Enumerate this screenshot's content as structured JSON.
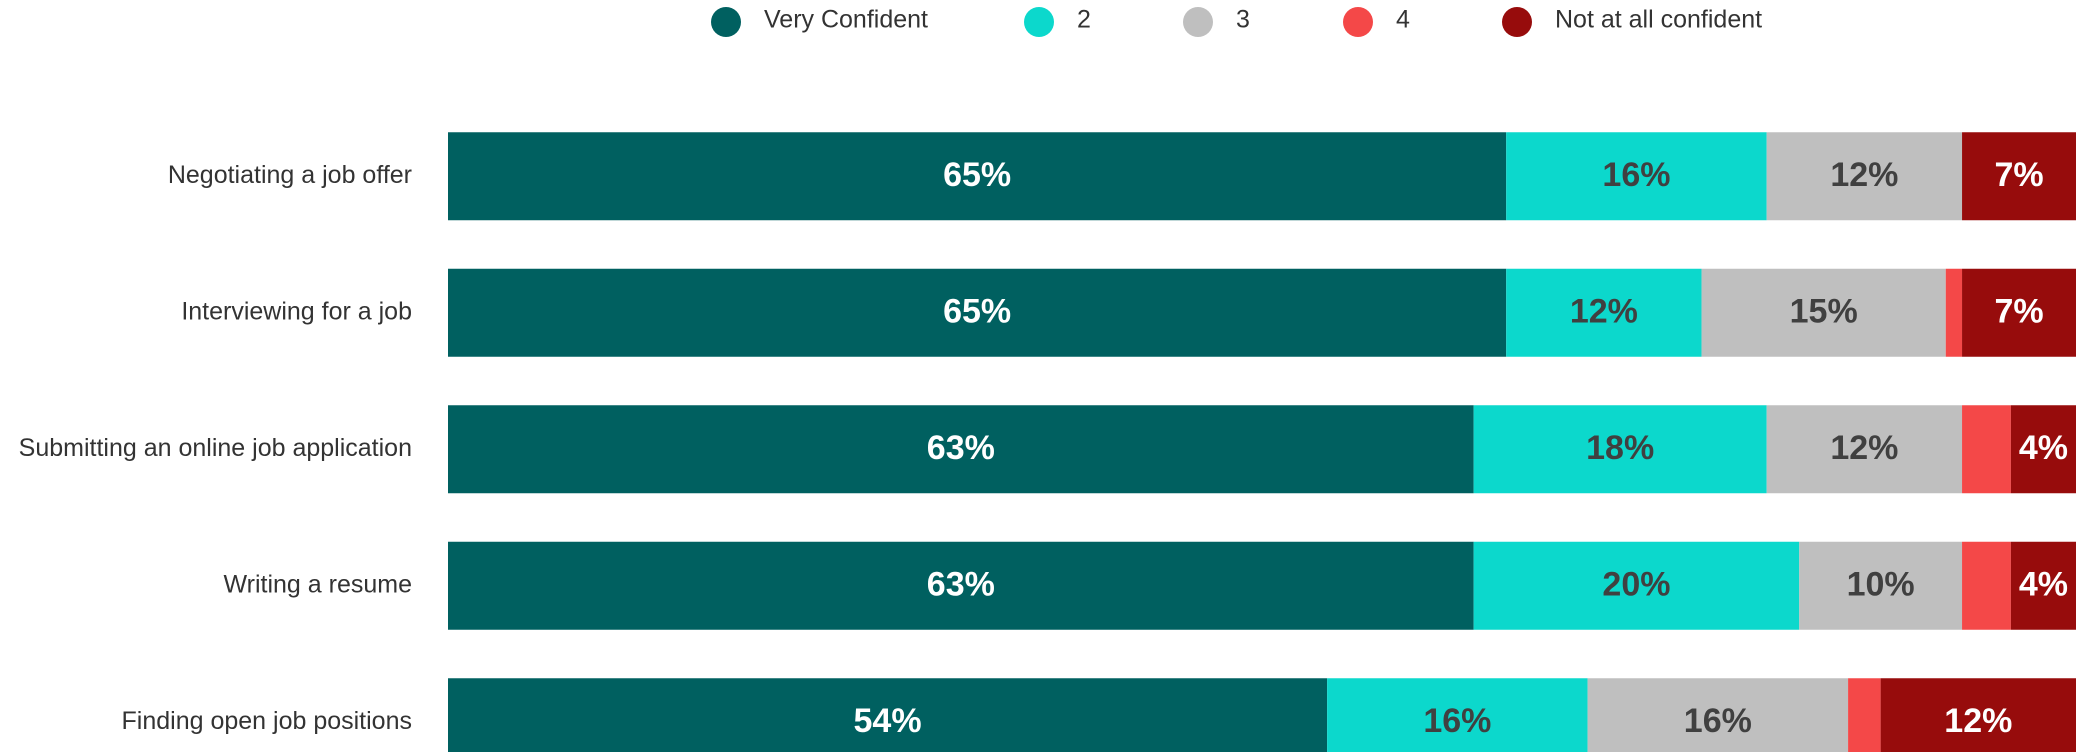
{
  "chart_data": {
    "type": "stacked-bar-horizontal",
    "categories": [
      "Negotiating a job offer",
      "Interviewing for a job",
      "Submitting an online job application",
      "Writing a resume",
      "Finding open job positions"
    ],
    "series": [
      {
        "name": "Very Confident",
        "color": "#006060",
        "values": [
          65,
          65,
          63,
          63,
          54
        ],
        "value_labels": [
          "65%",
          "65%",
          "63%",
          "63%",
          "54%"
        ]
      },
      {
        "name": "2",
        "color": "#0cd8cc",
        "values": [
          16,
          12,
          18,
          20,
          16
        ],
        "value_labels": [
          "16%",
          "12%",
          "18%",
          "20%",
          "16%"
        ]
      },
      {
        "name": "3",
        "color": "#bfbfbf",
        "values": [
          12,
          15,
          12,
          10,
          16
        ],
        "value_labels": [
          "12%",
          "15%",
          "12%",
          "10%",
          "16%"
        ]
      },
      {
        "name": "4",
        "color": "#f44848",
        "values": [
          0,
          1,
          3,
          3,
          2
        ]
      },
      {
        "name": "Not at all confident",
        "color": "#970c0c",
        "values": [
          7,
          7,
          4,
          4,
          12
        ],
        "value_labels": [
          "7%",
          "7%",
          "4%",
          "4%",
          "12%"
        ]
      }
    ],
    "xlim": [
      0,
      100
    ],
    "legend": "top"
  }
}
